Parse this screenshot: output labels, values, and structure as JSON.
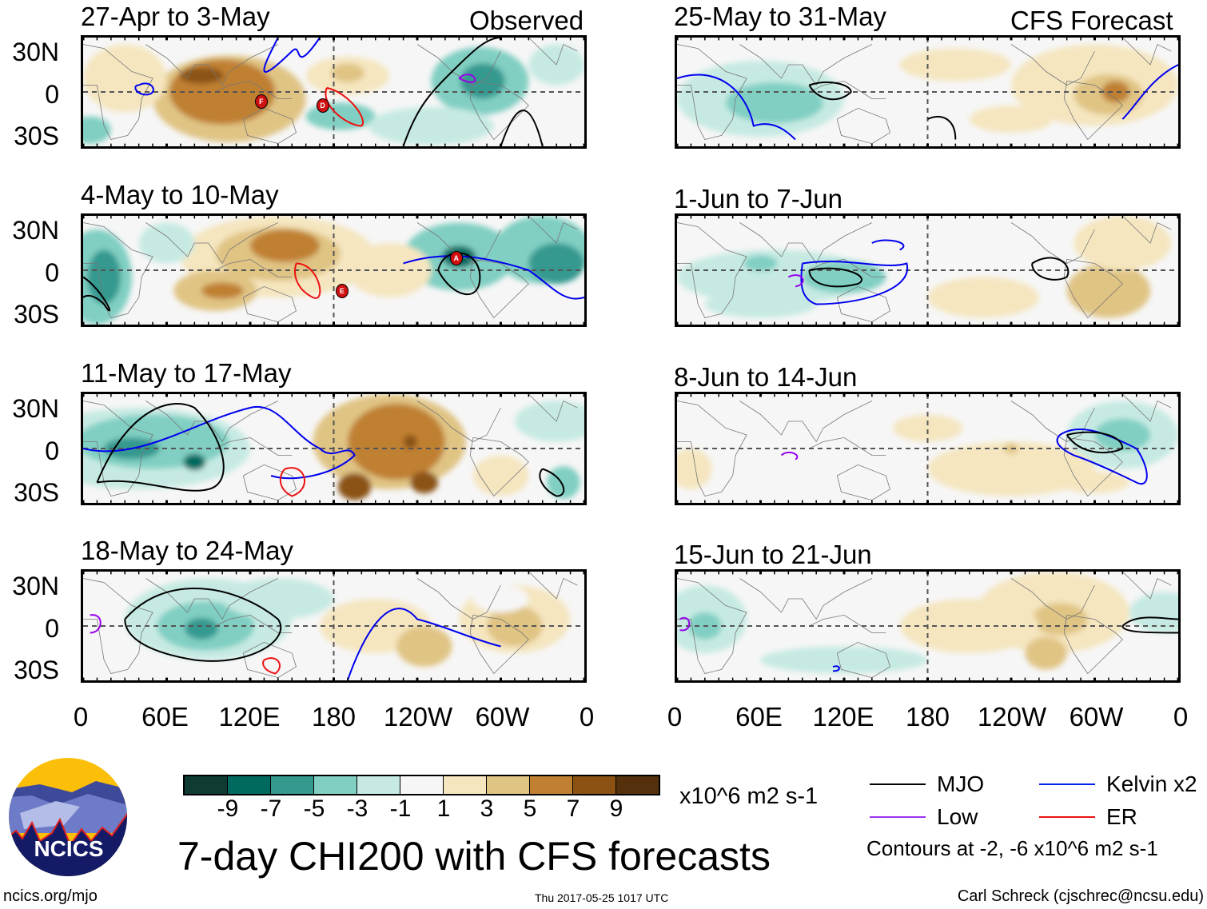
{
  "panels": [
    {
      "title": "27-Apr to 3-May",
      "label": "Observed",
      "cyclones": [
        "F",
        "D"
      ]
    },
    {
      "title": "4-May to 10-May",
      "cyclones": [
        "A",
        "E"
      ]
    },
    {
      "title": "11-May to 17-May"
    },
    {
      "title": "18-May to 24-May"
    },
    {
      "title": "25-May to 31-May",
      "label": "CFS Forecast"
    },
    {
      "title": "1-Jun to 7-Jun"
    },
    {
      "title": "8-Jun to 14-Jun"
    },
    {
      "title": "15-Jun to 21-Jun"
    }
  ],
  "lat_labels": [
    "30N",
    "0",
    "30S"
  ],
  "lon_labels": [
    "0",
    "60E",
    "120E",
    "180",
    "120W",
    "60W",
    "0"
  ],
  "colorbar": {
    "colors": [
      "#0f3b33",
      "#006a60",
      "#369990",
      "#80cfc2",
      "#c6eae3",
      "#f6f6f6",
      "#f5e6c0",
      "#e0c484",
      "#c08032",
      "#8b5214",
      "#54310c"
    ],
    "labels": [
      "-9",
      "-7",
      "-5",
      "-3",
      "-1",
      "1",
      "3",
      "5",
      "7",
      "9"
    ],
    "units": "x10^6 m2 s-1"
  },
  "title": "7-day CHI200 with CFS forecasts",
  "legend": {
    "items": [
      {
        "label": "MJO",
        "color": "#000000"
      },
      {
        "label": "Kelvin x2",
        "color": "#0022ee"
      },
      {
        "label": "Low",
        "color": "#9933ee"
      },
      {
        "label": "ER",
        "color": "#ee1111"
      }
    ],
    "note": "Contours at -2, -6 x10^6 m2 s-1"
  },
  "logo": {
    "text": "NCICS"
  },
  "footer": {
    "url": "ncics.org/mjo",
    "timestamp": "Thu 2017-05-25 1017 UTC",
    "credit": "Carl Schreck (cjschrec@ncsu.edu)"
  }
}
